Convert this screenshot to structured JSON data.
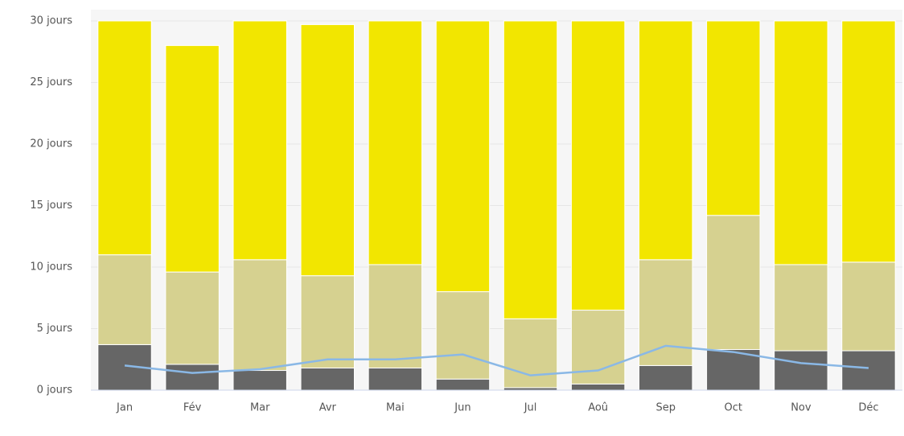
{
  "chart_data": {
    "type": "stacked_bar_line",
    "categories": [
      "Jan",
      "Fév",
      "Mar",
      "Avr",
      "Mai",
      "Jun",
      "Jul",
      "Aoû",
      "Sep",
      "Oct",
      "Nov",
      "Déc"
    ],
    "series": [
      {
        "color": "#666666",
        "values": [
          3.7,
          2.1,
          1.6,
          1.8,
          1.8,
          0.9,
          0.2,
          0.5,
          2.0,
          3.3,
          3.2,
          3.2
        ]
      },
      {
        "color": "#d6d190",
        "values": [
          7.3,
          7.5,
          9.0,
          7.5,
          8.4,
          7.1,
          5.6,
          6.0,
          8.6,
          10.9,
          7.0,
          7.2
        ]
      },
      {
        "color": "#f2e600",
        "values": [
          19.0,
          18.4,
          19.4,
          20.4,
          19.8,
          22.0,
          24.2,
          23.5,
          19.4,
          15.8,
          19.8,
          19.6
        ]
      },
      {
        "type": "line",
        "color": "#8ab8e6",
        "values": [
          2.0,
          1.4,
          1.7,
          2.5,
          2.5,
          2.9,
          1.2,
          1.6,
          3.6,
          3.1,
          2.2,
          1.8
        ]
      }
    ],
    "ylim": [
      0,
      30
    ],
    "yticks": [
      {
        "value": 0,
        "label": "0 jours"
      },
      {
        "value": 5,
        "label": "5 jours"
      },
      {
        "value": 10,
        "label": "10 jours"
      },
      {
        "value": 15,
        "label": "15 jours"
      },
      {
        "value": 20,
        "label": "20 jours"
      },
      {
        "value": 25,
        "label": "25 jours"
      },
      {
        "value": 30,
        "label": "30 jours"
      }
    ],
    "grid": true
  }
}
